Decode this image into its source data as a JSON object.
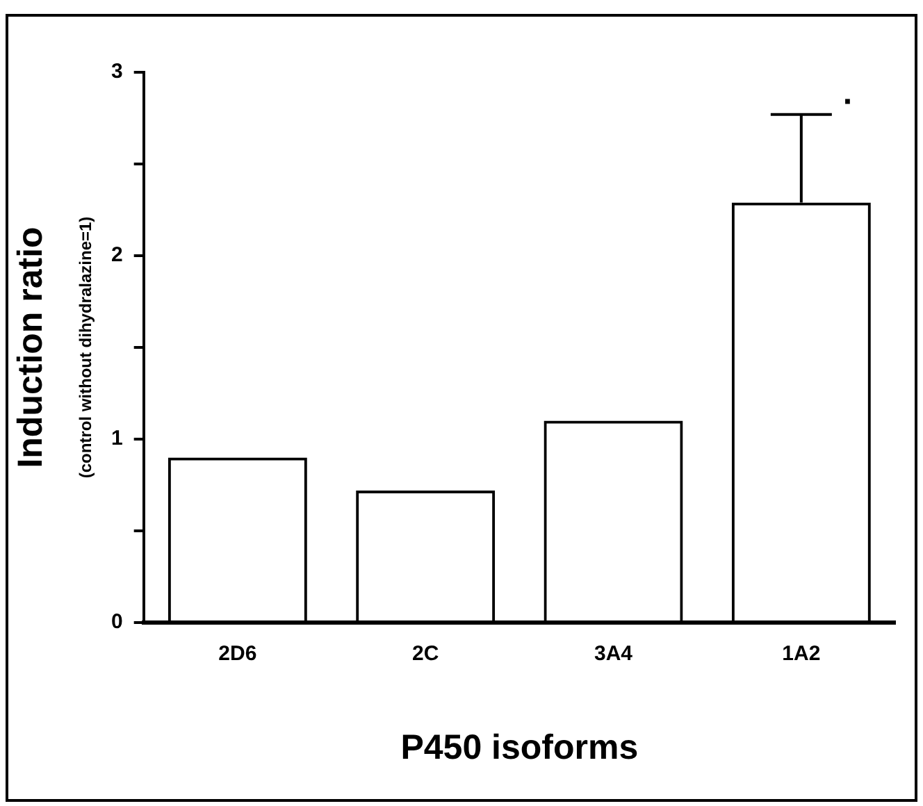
{
  "chart_data": {
    "type": "bar",
    "ylabel": "Induction ratio",
    "xlabel": "P450 isoforms",
    "categories": [
      "2D6",
      "2C",
      "3A4",
      "1A2"
    ],
    "values": [
      0.9,
      0.72,
      1.1,
      2.29
    ],
    "errors": [
      null,
      null,
      null,
      [
        2.29,
        2.77
      ]
    ],
    "color": "#000000",
    "ylim": [
      0,
      3
    ],
    "yticks": [
      0,
      {
        "value": 0.5,
        "label": null
      },
      1,
      {
        "value": 1.5,
        "label": null
      },
      2,
      {
        "value": 2.5,
        "label": null
      },
      3
    ],
    "annotations": [
      "(control without dihydralazine=1)",
      {
        "text": "·",
        "x": "1A2",
        "y": 2.77
      }
    ],
    "grid": false,
    "legend": false
  }
}
